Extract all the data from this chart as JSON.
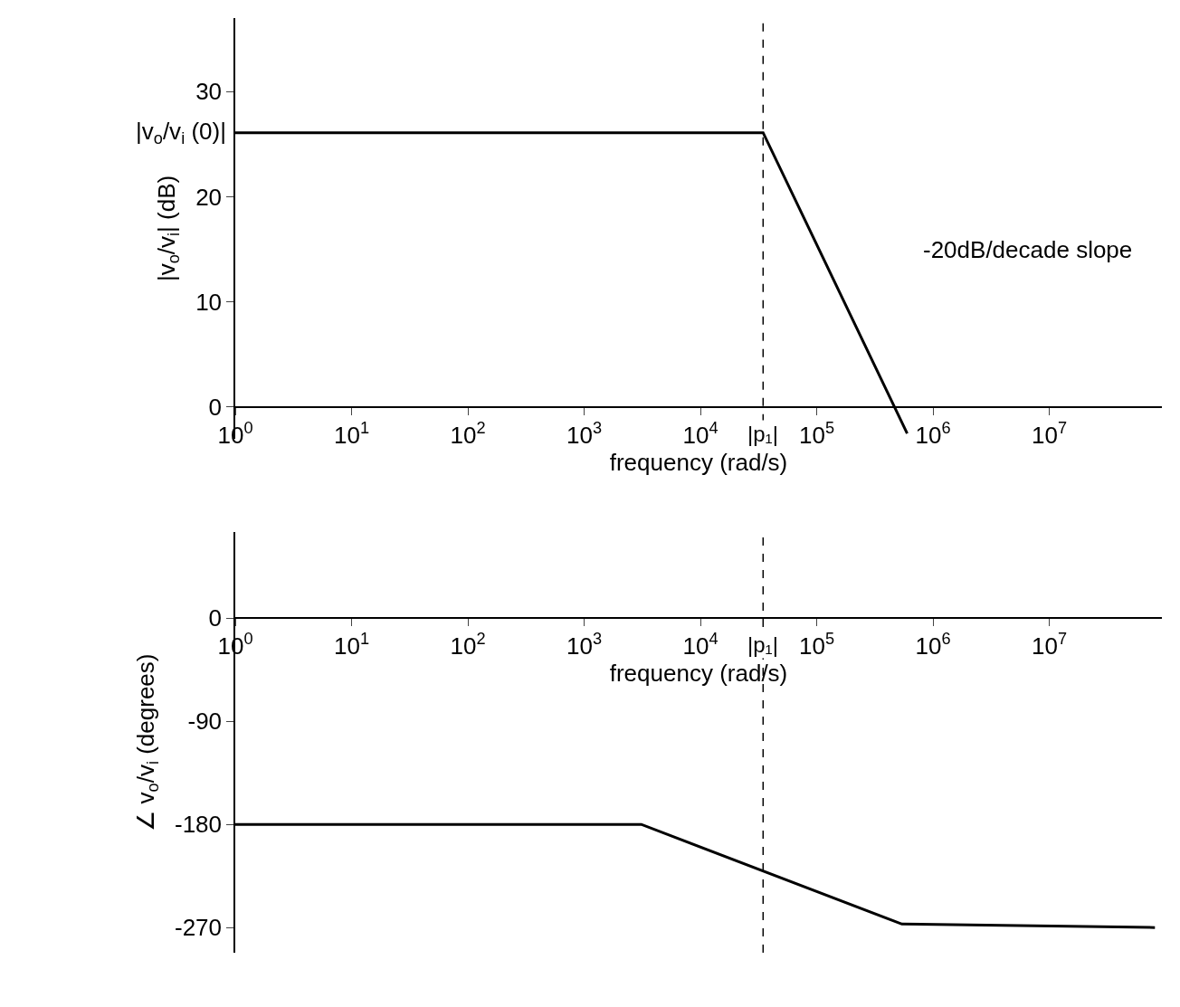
{
  "chart_data": [
    {
      "type": "line",
      "x": [
        1,
        34600,
        600000
      ],
      "xlabel": "frequency (rad/s)",
      "ylabel": "|v$_{o}$/v$_{i}$| (dB)",
      "series": [
        {
          "color": "#000000",
          "values": [
            26.1,
            26.1,
            -2.5
          ]
        }
      ],
      "log": "x",
      "xlim": [
        1,
        93000000
      ],
      "ylim": [
        -3,
        37
      ],
      "xticks": [
        {
          "value": 1,
          "label": "10$^{0}$"
        },
        {
          "value": 10,
          "label": "10$^{1}$"
        },
        {
          "value": 100,
          "label": "10$^{2}$"
        },
        {
          "value": 1000,
          "label": "10$^{3}$"
        },
        {
          "value": 10000,
          "label": "10$^{4}$"
        },
        {
          "value": 100000,
          "label": "10$^{5}$"
        },
        {
          "value": 1000000,
          "label": "10$^{6}$"
        },
        {
          "value": 10000000,
          "label": "10$^{7}$"
        }
      ],
      "yticks": [
        0,
        10,
        20,
        30
      ],
      "ref_lines": [
        {
          "axis": "x",
          "value": 34600,
          "label": "|p₁|",
          "line_style": "dashed"
        }
      ],
      "annotations": [
        {
          "text": "|v$_{o}$/v$_{i}$ (0)|",
          "x": 1,
          "y": 26.1
        },
        "-20dB/decade slope"
      ],
      "line_style": "solid"
    },
    {
      "type": "line",
      "x": [
        1,
        3100,
        540000,
        81000000
      ],
      "xlabel": "frequency (rad/s)",
      "ylabel": "∠ v$_{o}$/v$_{i}$ (degrees)",
      "series": [
        {
          "color": "#000000",
          "values": [
            -180,
            -180,
            -267,
            -270
          ]
        }
      ],
      "log": "x",
      "xlim": [
        1,
        93000000
      ],
      "ylim": [
        -292,
        75
      ],
      "xticks": [
        {
          "value": 1,
          "label": "10$^{0}$"
        },
        {
          "value": 10,
          "label": "10$^{1}$"
        },
        {
          "value": 100,
          "label": "10$^{2}$"
        },
        {
          "value": 1000,
          "label": "10$^{3}$"
        },
        {
          "value": 10000,
          "label": "10$^{4}$"
        },
        {
          "value": 100000,
          "label": "10$^{5}$"
        },
        {
          "value": 1000000,
          "label": "10$^{6}$"
        },
        {
          "value": 10000000,
          "label": "10$^{7}$"
        }
      ],
      "yticks": [
        0,
        -90,
        -180,
        -270
      ],
      "ref_lines": [
        {
          "axis": "x",
          "value": 34600,
          "label": "|p₁|",
          "line_style": "dashed"
        }
      ],
      "line_style": "solid"
    }
  ]
}
